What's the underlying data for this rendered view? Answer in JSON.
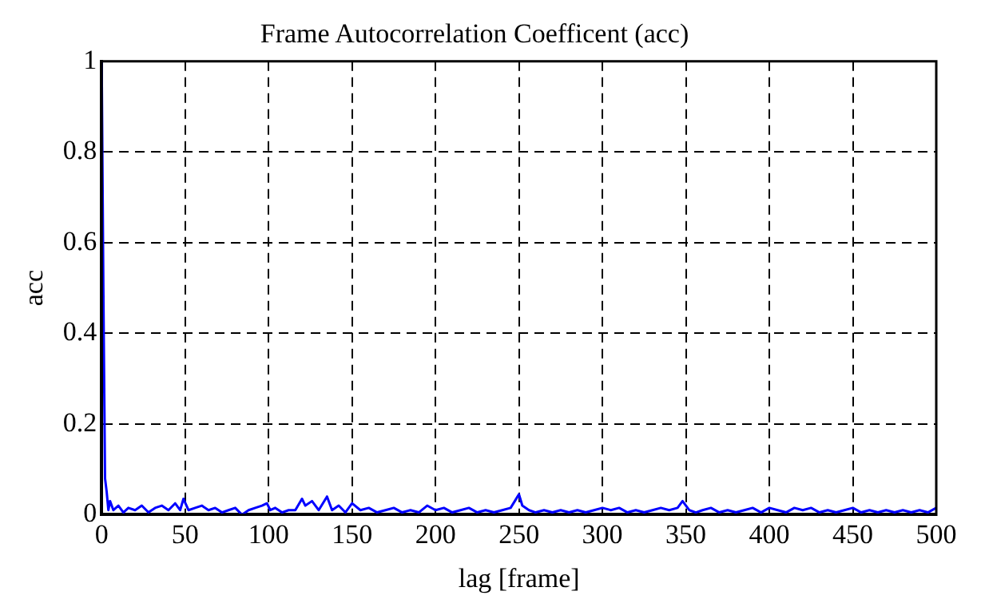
{
  "chart_data": {
    "type": "line",
    "title": "Frame Autocorrelation Coefficent (acc)",
    "xlabel": "lag [frame]",
    "ylabel": "acc",
    "series": [
      {
        "color": "#0000ff",
        "x": [
          0,
          1,
          2,
          3,
          4,
          5,
          7,
          10,
          13,
          16,
          20,
          24,
          28,
          32,
          36,
          40,
          44,
          47,
          49,
          52,
          56,
          60,
          64,
          68,
          72,
          76,
          80,
          84,
          88,
          92,
          96,
          99,
          101,
          104,
          108,
          112,
          116,
          120,
          122,
          126,
          130,
          135,
          138,
          142,
          146,
          150,
          155,
          160,
          165,
          170,
          175,
          180,
          185,
          190,
          195,
          200,
          205,
          210,
          215,
          220,
          225,
          230,
          235,
          240,
          245,
          250,
          252,
          256,
          260,
          265,
          270,
          275,
          280,
          285,
          290,
          295,
          300,
          305,
          310,
          315,
          320,
          325,
          330,
          335,
          340,
          345,
          348,
          352,
          356,
          360,
          365,
          370,
          375,
          380,
          385,
          390,
          395,
          400,
          405,
          410,
          415,
          420,
          425,
          430,
          435,
          440,
          445,
          450,
          455,
          460,
          465,
          470,
          475,
          480,
          485,
          490,
          495,
          500
        ],
        "values": [
          1,
          0.5,
          0.08,
          0.05,
          0.01,
          0.03,
          0.01,
          0.02,
          0.005,
          0.015,
          0.01,
          0.02,
          0.005,
          0.015,
          0.02,
          0.01,
          0.025,
          0.01,
          0.035,
          0.01,
          0.015,
          0.02,
          0.01,
          0.015,
          0.005,
          0.01,
          0.015,
          0,
          0.01,
          0.015,
          0.02,
          0.025,
          0.01,
          0.015,
          0.005,
          0.01,
          0.01,
          0.035,
          0.02,
          0.03,
          0.01,
          0.04,
          0.01,
          0.02,
          0.005,
          0.025,
          0.01,
          0.015,
          0.005,
          0.01,
          0.015,
          0.005,
          0.01,
          0.005,
          0.02,
          0.01,
          0.015,
          0.005,
          0.01,
          0.015,
          0.005,
          0.01,
          0.005,
          0.01,
          0.015,
          0.045,
          0.02,
          0.01,
          0.005,
          0.01,
          0.005,
          0.01,
          0.005,
          0.01,
          0.005,
          0.01,
          0.015,
          0.01,
          0.015,
          0.005,
          0.01,
          0.005,
          0.01,
          0.015,
          0.01,
          0.015,
          0.03,
          0.01,
          0.005,
          0.01,
          0.015,
          0.005,
          0.01,
          0.005,
          0.01,
          0.015,
          0.005,
          0.015,
          0.01,
          0.005,
          0.015,
          0.01,
          0.015,
          0.005,
          0.01,
          0.005,
          0.01,
          0.015,
          0.005,
          0.01,
          0.005,
          0.01,
          0.005,
          0.01,
          0.005,
          0.01,
          0.005,
          0.015
        ]
      }
    ],
    "xlim": [
      0,
      500
    ],
    "xticks": [
      0,
      50,
      100,
      150,
      200,
      250,
      300,
      350,
      400,
      450,
      500
    ],
    "ylim": [
      0,
      1
    ],
    "yticks": [
      0,
      0.2,
      0.4,
      0.6,
      0.8,
      1
    ],
    "grid": true,
    "legend": false,
    "marker": "none",
    "line_style": "solid"
  }
}
